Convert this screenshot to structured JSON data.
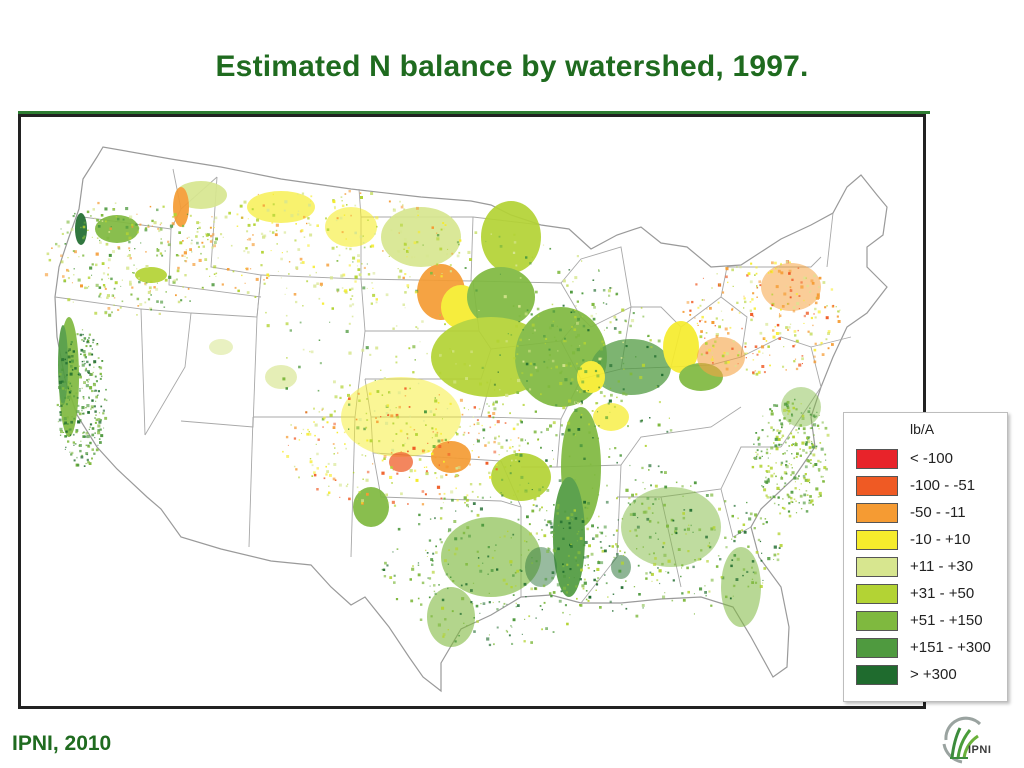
{
  "slide": {
    "title": "Estimated N balance by watershed, 1997.",
    "source": "IPNI, 2010"
  },
  "logo": {
    "text": "IPNI",
    "icon": "ipni-grass-logo-icon"
  },
  "map": {
    "region": "Contiguous United States",
    "boundaries": "state",
    "colors": {
      "state_line": "#9a9a9a",
      "frame": "#222222",
      "title": "#1f6b1f"
    }
  },
  "legend": {
    "unit": "lb/A",
    "classes": [
      {
        "label": "< -100",
        "color": "#e8232a"
      },
      {
        "label": "-100 - -51",
        "color": "#ef5a24"
      },
      {
        "label": "-50 - -11",
        "color": "#f59b33"
      },
      {
        "label": "-10 - +10",
        "color": "#f6ec2c"
      },
      {
        "label": "+11 - +30",
        "color": "#d7e68f"
      },
      {
        "label": "+31 - +50",
        "color": "#b3d334"
      },
      {
        "label": "+51 - +150",
        "color": "#7fb93f"
      },
      {
        "label": "+151 - +300",
        "color": "#4f9a3f"
      },
      {
        "label": "> +300",
        "color": "#1f6b2e"
      }
    ]
  }
}
